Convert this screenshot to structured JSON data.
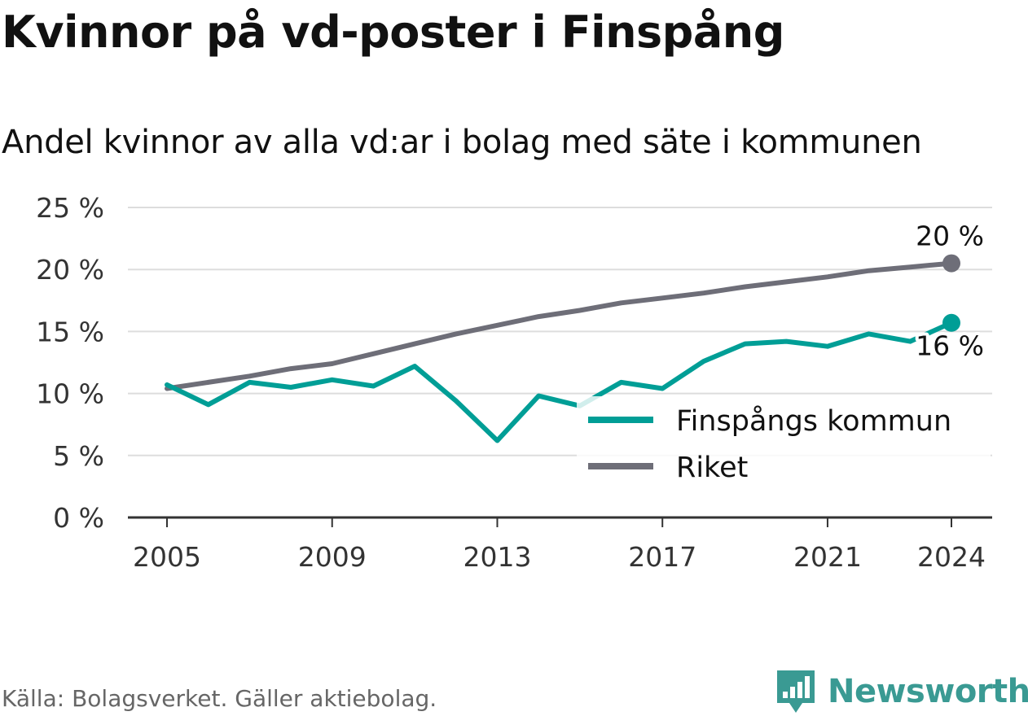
{
  "title": "Kvinnor på vd-poster i Finspång",
  "subtitle": "Andel kvinnor av alla vd:ar i bolag med säte i kommunen",
  "source": "Källa: Bolagsverket. Gäller aktiebolag.",
  "brand": "Newsworthy",
  "colors": {
    "finspang": "#009e96",
    "riket": "#6e6e78",
    "grid": "#dddddd",
    "axis": "#333333",
    "brand": "#3a9a93"
  },
  "chart_data": {
    "type": "line",
    "xlim": [
      2005,
      2024
    ],
    "ylim": [
      0,
      25
    ],
    "x_ticks": [
      2005,
      2009,
      2013,
      2017,
      2021,
      2024
    ],
    "y_ticks": [
      0,
      5,
      10,
      15,
      20,
      25
    ],
    "y_tick_labels": [
      "0 %",
      "5 %",
      "10 %",
      "15 %",
      "20 %",
      "25 %"
    ],
    "x": [
      2005,
      2006,
      2007,
      2008,
      2009,
      2010,
      2011,
      2012,
      2013,
      2014,
      2015,
      2016,
      2017,
      2018,
      2019,
      2020,
      2021,
      2022,
      2023,
      2024
    ],
    "series": [
      {
        "name": "Finspångs kommun",
        "color": "#009e96",
        "values": [
          10.7,
          9.1,
          10.9,
          10.5,
          11.1,
          10.6,
          12.2,
          9.4,
          6.2,
          9.8,
          9.0,
          10.9,
          10.4,
          12.6,
          14.0,
          14.2,
          13.8,
          14.8,
          14.2,
          15.7
        ],
        "end_label": "16 %"
      },
      {
        "name": "Riket",
        "color": "#6e6e78",
        "values": [
          10.4,
          10.9,
          11.4,
          12.0,
          12.4,
          13.2,
          14.0,
          14.8,
          15.5,
          16.2,
          16.7,
          17.3,
          17.7,
          18.1,
          18.6,
          19.0,
          19.4,
          19.9,
          20.2,
          20.5
        ],
        "end_label": "20 %"
      }
    ],
    "legend": {
      "position": "bottom-right",
      "items": [
        "Finspångs kommun",
        "Riket"
      ]
    },
    "grid": true
  }
}
